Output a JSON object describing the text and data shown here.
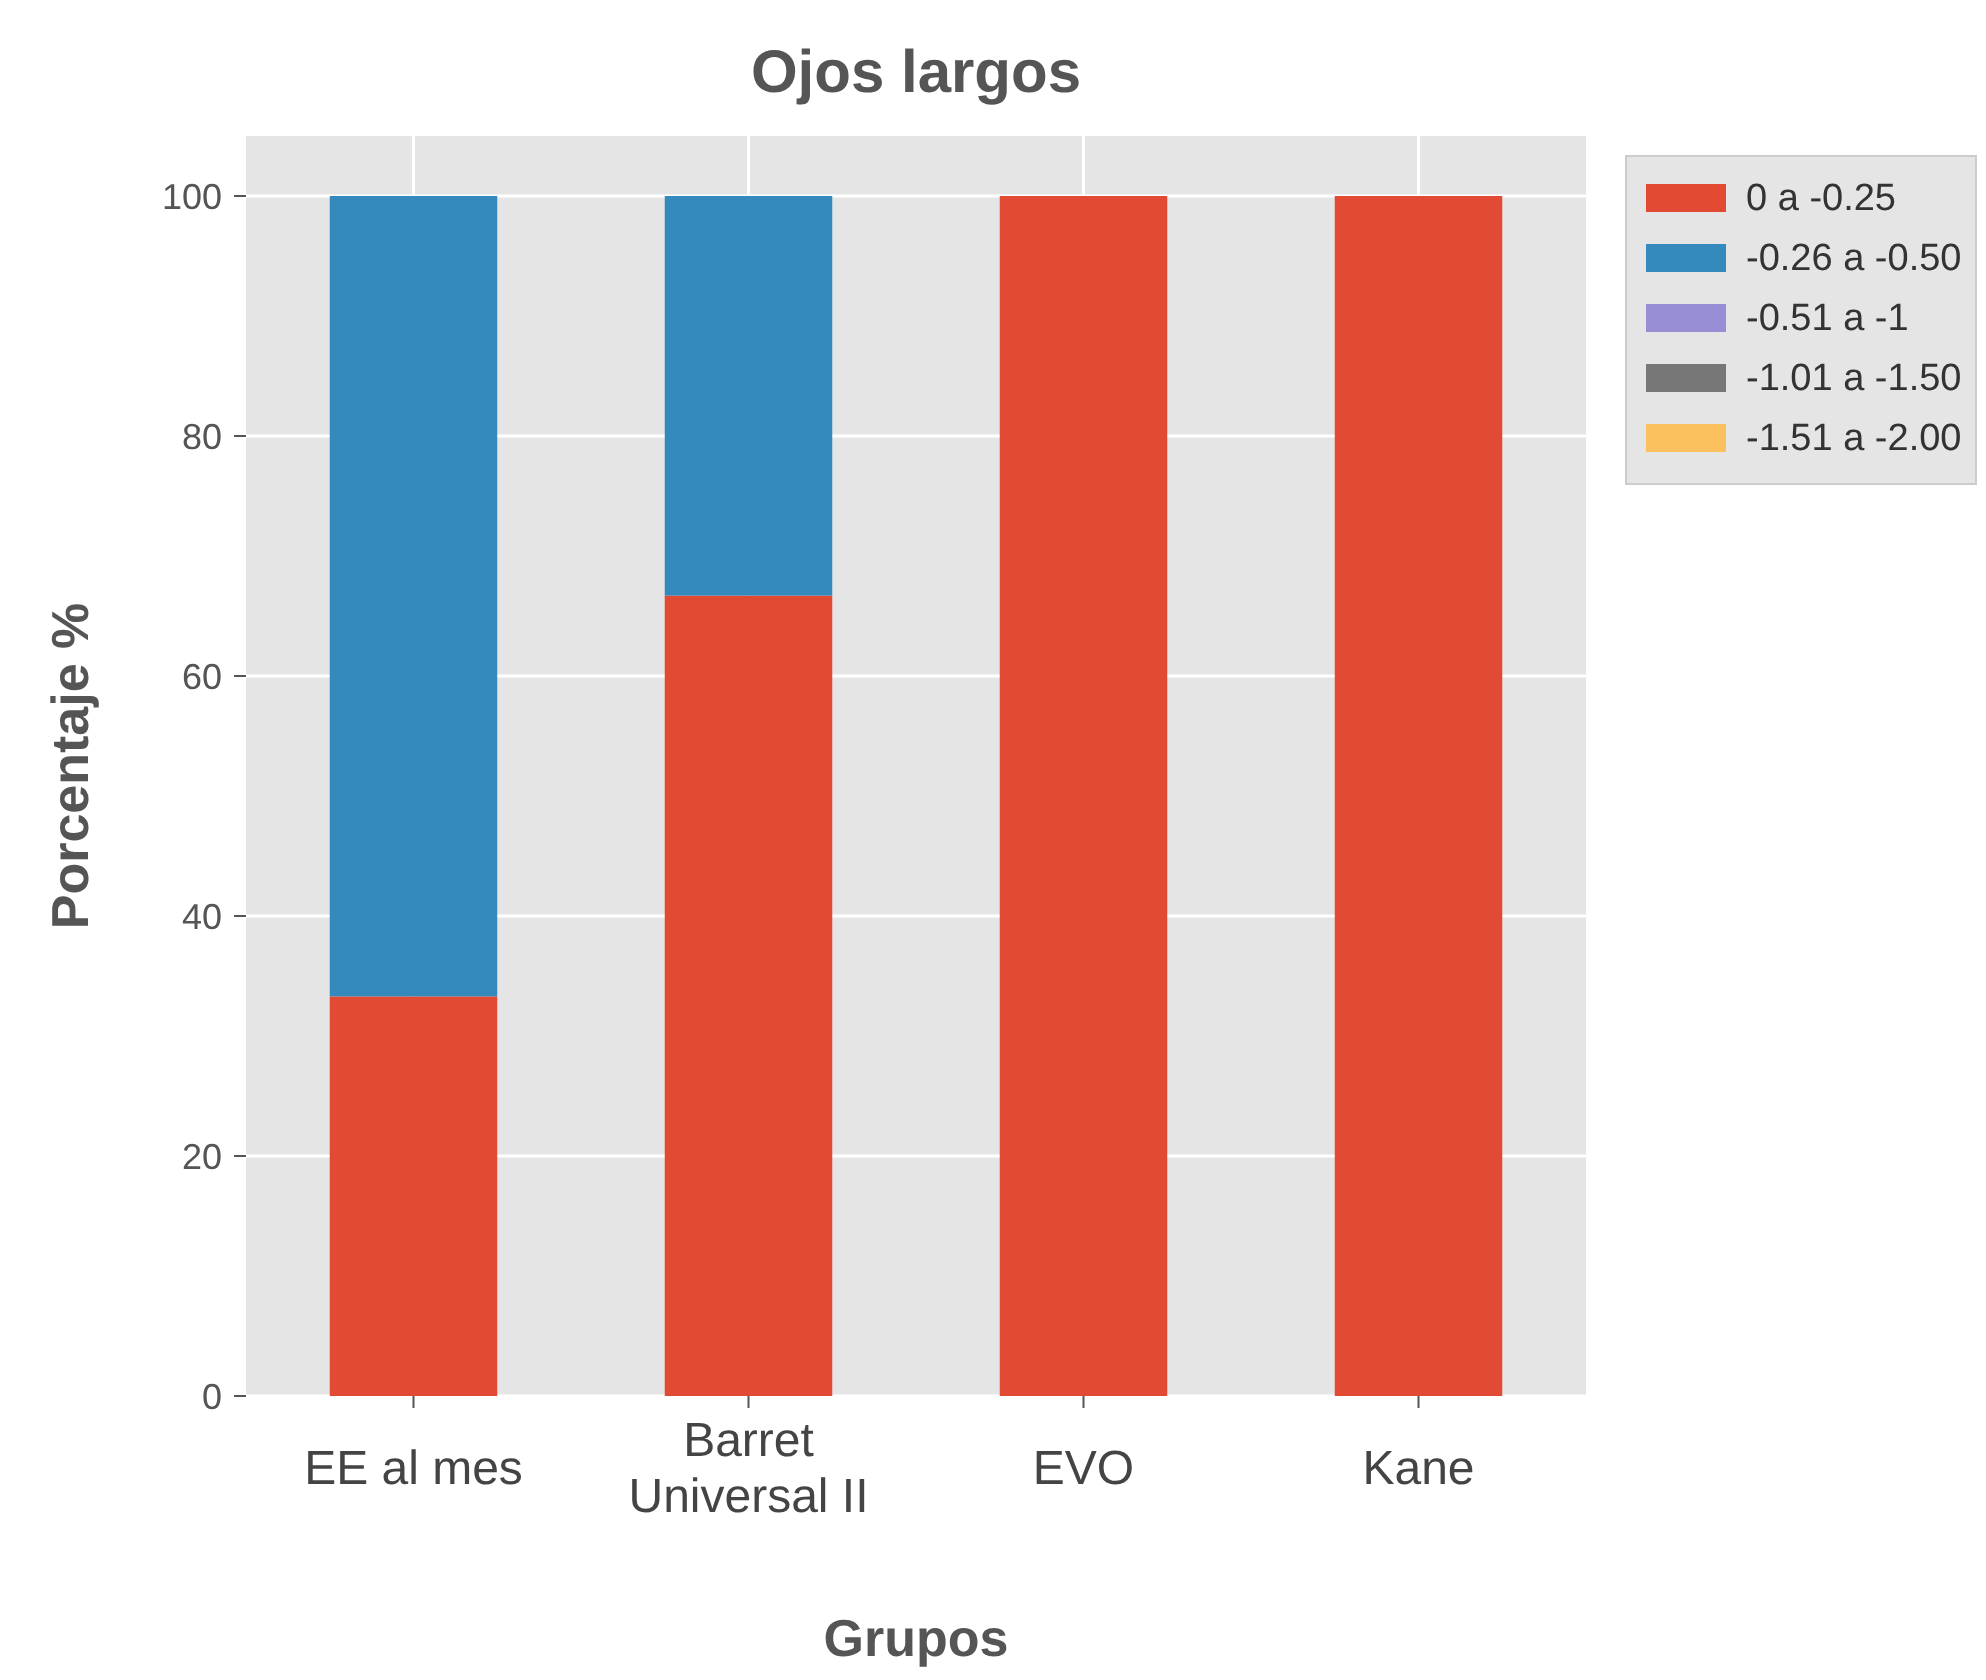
{
  "chart_data": {
    "type": "bar",
    "title": "Ojos largos",
    "xlabel": "Grupos",
    "ylabel": "Porcentaje %",
    "categories": [
      "EE al mes",
      "Barret Universal II",
      "EVO",
      "Kane"
    ],
    "stacked": true,
    "series": [
      {
        "name": "0 a -0.25",
        "color": "#e24a33",
        "values": [
          33.3,
          66.7,
          100,
          100
        ]
      },
      {
        "name": "-0.26 a -0.50",
        "color": "#348abd",
        "values": [
          66.7,
          33.3,
          0,
          0
        ]
      },
      {
        "name": "-0.51 a -1",
        "color": "#988ed5",
        "values": [
          0,
          0,
          0,
          0
        ]
      },
      {
        "name": "-1.01 a -1.50",
        "color": "#777777",
        "values": [
          0,
          0,
          0,
          0
        ]
      },
      {
        "name": "-1.51 a -2.00",
        "color": "#fbc15e",
        "values": [
          0,
          0,
          0,
          0
        ]
      }
    ],
    "ylim": [
      0,
      105
    ],
    "yticks": [
      0,
      20,
      40,
      60,
      80,
      100
    ],
    "grid": true,
    "legend": "right"
  }
}
